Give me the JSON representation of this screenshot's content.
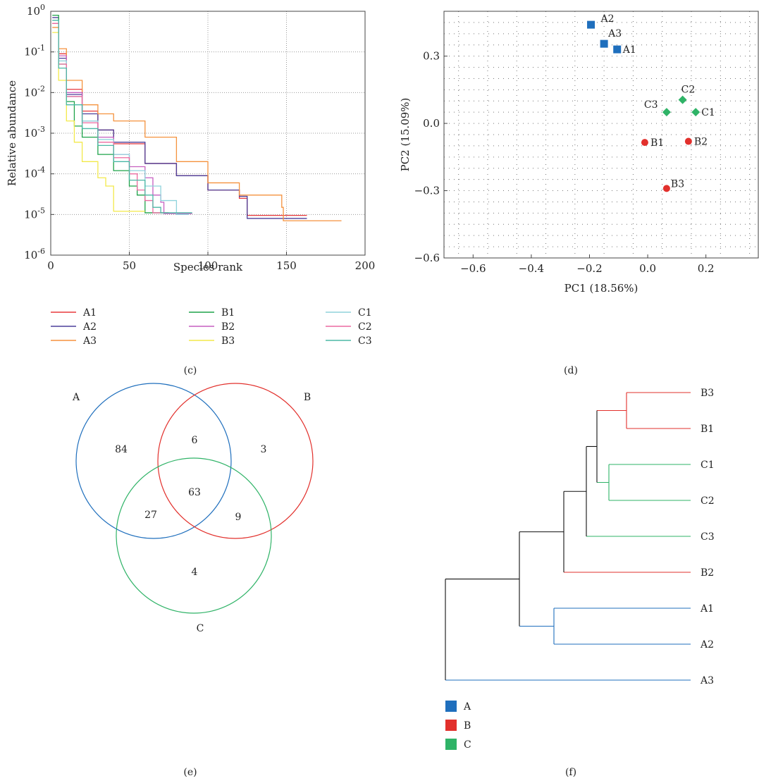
{
  "panel_labels": {
    "c": "(c)",
    "d": "(d)",
    "e": "(e)",
    "f": "(f)"
  },
  "colors": {
    "A1": "#e8383d",
    "A2": "#4b3f9a",
    "A3": "#f5923e",
    "B1": "#1fa34a",
    "B2": "#c65fc0",
    "B3": "#f3e94a",
    "C1": "#8fd3dc",
    "C2": "#ec6aa0",
    "C3": "#4bb8a6",
    "groupA": "#1f6fbd",
    "groupB": "#e2302c",
    "groupC": "#2fb367"
  },
  "chart_data": [
    {
      "type": "line",
      "id": "rank_abundance",
      "xlabel": "Species rank",
      "ylabel": "Relative abundance",
      "xlim": [
        0,
        200
      ],
      "ylim_log10": [
        -6,
        0
      ],
      "x_ticks": [
        "0",
        "50",
        "100",
        "150",
        "200"
      ],
      "y_ticks_base": "10",
      "y_ticks_exp": [
        "0",
        "-1",
        "-2",
        "-3",
        "-4",
        "-5",
        "-6"
      ],
      "log_y": true,
      "grid": true,
      "legend_position": "bottom",
      "series": [
        {
          "name": "A1",
          "x": [
            1,
            5,
            10,
            20,
            30,
            40,
            60,
            80,
            100,
            120,
            124,
            125,
            163
          ],
          "y": [
            0.5,
            0.09,
            0.012,
            0.0035,
            0.0012,
            0.00055,
            0.00018,
            9e-05,
            4e-05,
            2.5e-05,
            2.5e-05,
            9.5e-06,
            9.5e-06
          ]
        },
        {
          "name": "A2",
          "x": [
            1,
            5,
            10,
            20,
            30,
            40,
            60,
            80,
            100,
            120,
            124,
            125,
            163
          ],
          "y": [
            0.7,
            0.07,
            0.009,
            0.003,
            0.0012,
            0.0006,
            0.00018,
            9e-05,
            4e-05,
            2.8e-05,
            2.8e-05,
            8e-06,
            8e-06
          ]
        },
        {
          "name": "A3",
          "x": [
            1,
            5,
            10,
            20,
            30,
            40,
            60,
            80,
            100,
            120,
            147,
            148,
            185
          ],
          "y": [
            0.4,
            0.12,
            0.02,
            0.005,
            0.003,
            0.002,
            0.0008,
            0.0002,
            6e-05,
            3e-05,
            1.5e-05,
            7e-06,
            7e-06
          ]
        },
        {
          "name": "B1",
          "x": [
            1,
            5,
            10,
            15,
            20,
            30,
            40,
            50,
            55,
            60,
            70,
            75
          ],
          "y": [
            0.8,
            0.05,
            0.006,
            0.0015,
            0.0008,
            0.0003,
            0.00012,
            5e-05,
            3e-05,
            1.1e-05,
            1.1e-05,
            1.1e-05
          ]
        },
        {
          "name": "B2",
          "x": [
            1,
            5,
            10,
            20,
            30,
            40,
            50,
            60,
            65,
            70,
            72,
            90
          ],
          "y": [
            0.5,
            0.08,
            0.01,
            0.002,
            0.0008,
            0.0003,
            0.00015,
            8e-05,
            3e-05,
            2e-05,
            1.05e-05,
            1.05e-05
          ]
        },
        {
          "name": "B3",
          "x": [
            1,
            5,
            10,
            15,
            20,
            30,
            35,
            40,
            60
          ],
          "y": [
            0.3,
            0.02,
            0.002,
            0.0006,
            0.0002,
            8e-05,
            5e-05,
            1.2e-05,
            1.2e-05
          ]
        },
        {
          "name": "C1",
          "x": [
            1,
            5,
            10,
            20,
            30,
            40,
            50,
            60,
            70,
            80,
            88
          ],
          "y": [
            0.6,
            0.06,
            0.008,
            0.002,
            0.0007,
            0.0003,
            0.00012,
            5e-05,
            2.2e-05,
            1e-05,
            1e-05
          ]
        },
        {
          "name": "C2",
          "x": [
            1,
            5,
            10,
            20,
            30,
            40,
            50,
            55,
            60,
            65,
            75
          ],
          "y": [
            0.5,
            0.05,
            0.008,
            0.0018,
            0.0006,
            0.00025,
            0.0001,
            4e-05,
            2.2e-05,
            1.1e-05,
            1.1e-05
          ]
        },
        {
          "name": "C3",
          "x": [
            1,
            5,
            10,
            20,
            30,
            40,
            50,
            60,
            65,
            70,
            90
          ],
          "y": [
            0.6,
            0.04,
            0.005,
            0.0013,
            0.0005,
            0.0002,
            7e-05,
            3e-05,
            1.5e-05,
            1.1e-05,
            1.1e-05
          ]
        }
      ]
    },
    {
      "type": "scatter",
      "id": "pca",
      "xlabel": "PC1 (18.56%)",
      "ylabel": "PC2 (15.09%)",
      "xlim": [
        -0.7,
        0.38
      ],
      "ylim": [
        -0.6,
        0.5
      ],
      "x_ticks": [
        "−0.6",
        "−0.4",
        "−0.2",
        "0.0",
        "0.2"
      ],
      "x_tick_values": [
        -0.6,
        -0.4,
        -0.2,
        0.0,
        0.2
      ],
      "y_ticks": [
        "−0.6",
        "−0.3",
        "0.0",
        "0.3"
      ],
      "y_tick_values": [
        -0.6,
        -0.3,
        0.0,
        0.3
      ],
      "grid": true,
      "points": [
        {
          "label": "A1",
          "x": -0.105,
          "y": 0.33,
          "group": "A",
          "marker": "square"
        },
        {
          "label": "A2",
          "x": -0.195,
          "y": 0.44,
          "group": "A",
          "marker": "square"
        },
        {
          "label": "A3",
          "x": -0.15,
          "y": 0.355,
          "group": "A",
          "marker": "square"
        },
        {
          "label": "B1",
          "x": -0.01,
          "y": -0.085,
          "group": "B",
          "marker": "circle"
        },
        {
          "label": "B2",
          "x": 0.14,
          "y": -0.08,
          "group": "B",
          "marker": "circle"
        },
        {
          "label": "B3",
          "x": 0.065,
          "y": -0.29,
          "group": "B",
          "marker": "circle"
        },
        {
          "label": "C1",
          "x": 0.165,
          "y": 0.05,
          "group": "C",
          "marker": "diamond"
        },
        {
          "label": "C2",
          "x": 0.12,
          "y": 0.105,
          "group": "C",
          "marker": "diamond"
        },
        {
          "label": "C3",
          "x": 0.065,
          "y": 0.05,
          "group": "C",
          "marker": "diamond"
        }
      ]
    },
    {
      "type": "venn",
      "id": "venn",
      "sets": [
        "A",
        "B",
        "C"
      ],
      "regions": {
        "A_only": "84",
        "B_only": "3",
        "C_only": "4",
        "AB": "6",
        "AC": "27",
        "BC": "9",
        "ABC": "63"
      }
    },
    {
      "type": "dendrogram",
      "id": "cluster",
      "leaves": [
        "B3",
        "B1",
        "C1",
        "C2",
        "C3",
        "B2",
        "A1",
        "A2",
        "A3"
      ],
      "legend": [
        "A",
        "B",
        "C"
      ]
    }
  ]
}
